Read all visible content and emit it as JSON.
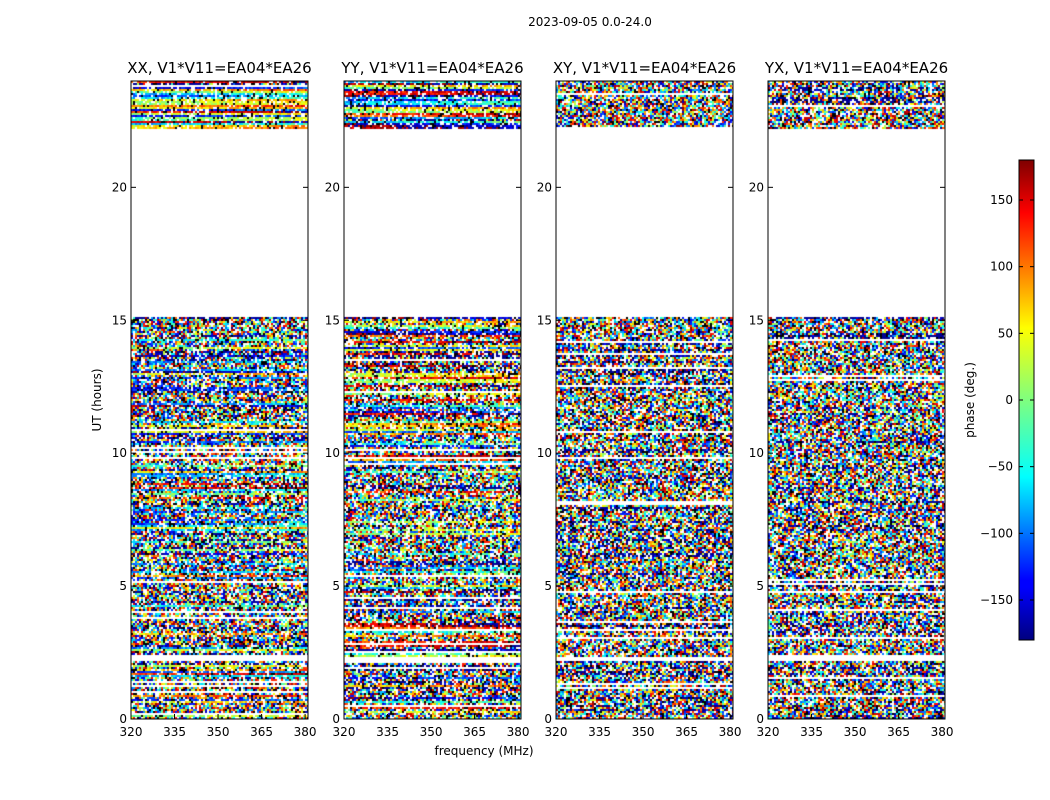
{
  "title": "2023-09-05 0.0-24.0",
  "chart_data": {
    "type": "heatmap",
    "title": "2023-09-05 0.0-24.0",
    "xlabel": "frequency (MHz)",
    "ylabel": "UT (hours)",
    "xlim": [
      320,
      381
    ],
    "ylim": [
      0,
      24
    ],
    "x_ticks": [
      320,
      335,
      350,
      365,
      380
    ],
    "y_ticks": [
      0,
      5,
      10,
      15,
      20
    ],
    "panels": [
      {
        "title": "XX, V1*V11=EA04*EA26",
        "coherence": "high"
      },
      {
        "title": "YY, V1*V11=EA04*EA26",
        "coherence": "high"
      },
      {
        "title": "XY, V1*V11=EA04*EA26",
        "coherence": "noise"
      },
      {
        "title": "YX, V1*V11=EA04*EA26",
        "coherence": "noise"
      }
    ],
    "colorbar": {
      "label": "phase (deg.)",
      "range": [
        -180,
        180
      ],
      "ticks": [
        -150,
        -100,
        -50,
        0,
        50,
        100,
        150
      ],
      "tick_labels": [
        "−150",
        "−100",
        "−50",
        "0",
        "50",
        "100",
        "150"
      ],
      "colormap": "jet"
    },
    "data_blocks_hours": [
      [
        0,
        2.2
      ],
      [
        2.3,
        15.1
      ],
      [
        22.2,
        24.0
      ]
    ],
    "data_gap_hours": [
      [
        15.1,
        22.2
      ]
    ]
  }
}
